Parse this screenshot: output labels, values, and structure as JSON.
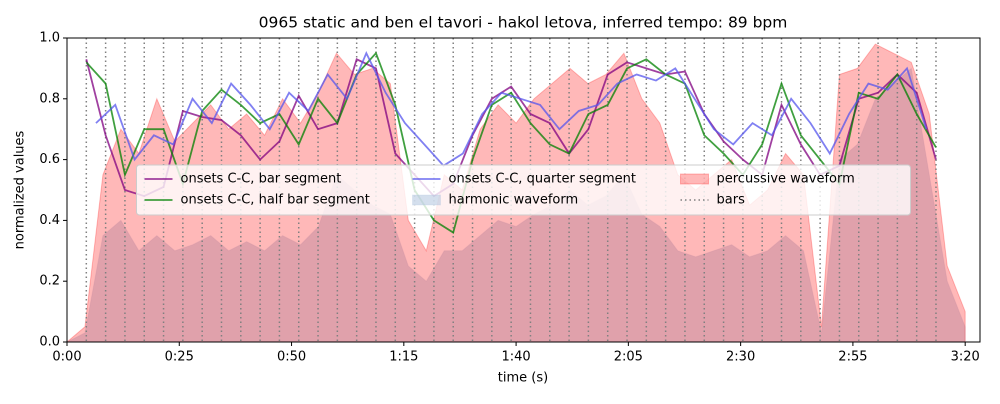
{
  "chart_data": {
    "type": "line",
    "title": "0965 static and ben el tavori - hakol letova, inferred tempo: 89 bpm",
    "x_label": "time (s)",
    "y_label": "normalized values",
    "xlim": [
      0,
      203.3
    ],
    "ylim": [
      0,
      1
    ],
    "xticks": [
      {
        "value": 0,
        "label": "0:00"
      },
      {
        "value": 25,
        "label": "0:25"
      },
      {
        "value": 50,
        "label": "0:50"
      },
      {
        "value": 75,
        "label": "1:15"
      },
      {
        "value": 100,
        "label": "1:40"
      },
      {
        "value": 125,
        "label": "2:05"
      },
      {
        "value": 150,
        "label": "2:30"
      },
      {
        "value": 175,
        "label": "2:55"
      },
      {
        "value": 200,
        "label": "3:20"
      }
    ],
    "yticks": [
      {
        "value": 0,
        "label": "0.0"
      },
      {
        "value": 0.2,
        "label": "0.2"
      },
      {
        "value": 0.4,
        "label": "0.4"
      },
      {
        "value": 0.6,
        "label": "0.6"
      },
      {
        "value": 0.8,
        "label": "0.8"
      },
      {
        "value": 1,
        "label": "1.0"
      }
    ],
    "legend": "center",
    "series": [
      {
        "name": "onsets C-C, bar segment",
        "kind": "line",
        "color": "#800080",
        "x": [
          4.3,
          8.6,
          12.9,
          17.2,
          21.5,
          25.8,
          30.1,
          34.4,
          38.7,
          43,
          47.3,
          51.6,
          55.9,
          60.2,
          64.5,
          68.8,
          73.1,
          77.4,
          81.7,
          86,
          90.3,
          94.6,
          98.9,
          103.2,
          107.5,
          111.8,
          116.1,
          120.4,
          124.7,
          129,
          133.3,
          137.6,
          141.9,
          146.2,
          150.5,
          154.8,
          159.1,
          163.4,
          167.7,
          172,
          176.3,
          180.6,
          184.9,
          189.2,
          193.5
        ],
        "values": [
          0.93,
          0.68,
          0.5,
          0.48,
          0.51,
          0.76,
          0.74,
          0.73,
          0.68,
          0.6,
          0.66,
          0.81,
          0.7,
          0.72,
          0.93,
          0.9,
          0.62,
          0.55,
          0.48,
          0.52,
          0.68,
          0.8,
          0.84,
          0.75,
          0.72,
          0.62,
          0.7,
          0.88,
          0.92,
          0.9,
          0.88,
          0.89,
          0.75,
          0.66,
          0.6,
          0.55,
          0.78,
          0.65,
          0.55,
          0.58,
          0.8,
          0.82,
          0.88,
          0.82,
          0.6
        ]
      },
      {
        "name": "onsets C-C, half bar segment",
        "kind": "line",
        "color": "#008000",
        "x": [
          4.3,
          8.6,
          12.9,
          17.2,
          21.5,
          25.8,
          30.1,
          34.4,
          38.7,
          43,
          47.3,
          51.6,
          55.9,
          60.2,
          64.5,
          68.8,
          73.1,
          77.4,
          81.7,
          86,
          90.3,
          94.6,
          98.9,
          103.2,
          107.5,
          111.8,
          116.1,
          120.4,
          124.7,
          129,
          133.3,
          137.6,
          141.9,
          146.2,
          150.5,
          154.8,
          159.1,
          163.4,
          167.7,
          172,
          176.3,
          180.6,
          184.9,
          189.2,
          193.5
        ],
        "values": [
          0.92,
          0.85,
          0.55,
          0.7,
          0.7,
          0.52,
          0.76,
          0.83,
          0.78,
          0.72,
          0.75,
          0.65,
          0.8,
          0.72,
          0.88,
          0.95,
          0.78,
          0.5,
          0.4,
          0.36,
          0.6,
          0.78,
          0.82,
          0.72,
          0.65,
          0.62,
          0.75,
          0.78,
          0.9,
          0.93,
          0.88,
          0.85,
          0.68,
          0.62,
          0.55,
          0.65,
          0.85,
          0.68,
          0.6,
          0.52,
          0.82,
          0.8,
          0.88,
          0.75,
          0.64
        ]
      },
      {
        "name": "onsets C-C, quarter segment",
        "kind": "line",
        "color": "#5555ee",
        "x": [
          6.45,
          10.75,
          15.05,
          19.35,
          23.65,
          27.95,
          32.25,
          36.55,
          40.85,
          45.15,
          49.45,
          53.75,
          58.05,
          62.35,
          66.65,
          70.95,
          75.25,
          79.55,
          83.85,
          88.15,
          92.45,
          96.75,
          101.05,
          105.35,
          109.65,
          113.95,
          118.25,
          122.55,
          126.85,
          131.15,
          135.45,
          139.75,
          144.05,
          148.35,
          152.65,
          156.95,
          161.25,
          165.55,
          169.85,
          174.15,
          178.45,
          182.75,
          187.05,
          191.35
        ],
        "values": [
          0.72,
          0.78,
          0.6,
          0.68,
          0.65,
          0.8,
          0.72,
          0.85,
          0.78,
          0.7,
          0.82,
          0.76,
          0.88,
          0.8,
          0.95,
          0.82,
          0.72,
          0.65,
          0.58,
          0.62,
          0.75,
          0.82,
          0.8,
          0.78,
          0.7,
          0.76,
          0.78,
          0.85,
          0.88,
          0.86,
          0.9,
          0.8,
          0.7,
          0.65,
          0.72,
          0.68,
          0.8,
          0.72,
          0.62,
          0.75,
          0.85,
          0.83,
          0.9,
          0.7
        ]
      },
      {
        "name": "harmonic waveform",
        "kind": "area",
        "color": "#b0c4de",
        "x": [
          0,
          4,
          8,
          12,
          16,
          20,
          24,
          28,
          32,
          36,
          40,
          44,
          48,
          52,
          56,
          60,
          64,
          68,
          72,
          76,
          80,
          84,
          88,
          92,
          96,
          100,
          104,
          108,
          112,
          116,
          120,
          124,
          128,
          132,
          136,
          140,
          144,
          148,
          152,
          156,
          160,
          164,
          168,
          172,
          176,
          180,
          184,
          188,
          192,
          196,
          200
        ],
        "values": [
          0,
          0.03,
          0.35,
          0.4,
          0.3,
          0.35,
          0.3,
          0.32,
          0.35,
          0.3,
          0.33,
          0.3,
          0.35,
          0.32,
          0.38,
          0.55,
          0.5,
          0.45,
          0.42,
          0.25,
          0.2,
          0.3,
          0.3,
          0.35,
          0.4,
          0.38,
          0.42,
          0.45,
          0.5,
          0.45,
          0.48,
          0.55,
          0.42,
          0.38,
          0.3,
          0.28,
          0.3,
          0.32,
          0.28,
          0.3,
          0.35,
          0.3,
          0.03,
          0.6,
          0.65,
          0.8,
          0.85,
          0.9,
          0.55,
          0.2,
          0.05
        ]
      },
      {
        "name": "percussive waveform",
        "kind": "area",
        "color": "#ff0000",
        "x": [
          0,
          4,
          8,
          12,
          16,
          20,
          24,
          28,
          32,
          36,
          40,
          44,
          48,
          52,
          56,
          60,
          64,
          68,
          72,
          76,
          80,
          84,
          88,
          92,
          96,
          100,
          104,
          108,
          112,
          116,
          120,
          124,
          128,
          132,
          136,
          140,
          144,
          148,
          152,
          156,
          160,
          164,
          168,
          172,
          176,
          180,
          184,
          188,
          192,
          196,
          200
        ],
        "values": [
          0,
          0.05,
          0.55,
          0.7,
          0.62,
          0.8,
          0.66,
          0.72,
          0.78,
          0.7,
          0.75,
          0.68,
          0.8,
          0.72,
          0.82,
          0.95,
          0.88,
          0.9,
          0.85,
          0.4,
          0.3,
          0.55,
          0.5,
          0.7,
          0.78,
          0.72,
          0.8,
          0.85,
          0.9,
          0.85,
          0.88,
          0.95,
          0.8,
          0.72,
          0.55,
          0.5,
          0.55,
          0.6,
          0.45,
          0.5,
          0.62,
          0.55,
          0.05,
          0.88,
          0.9,
          0.98,
          0.95,
          0.92,
          0.75,
          0.25,
          0.1
        ]
      },
      {
        "name": "bars",
        "kind": "vlines",
        "color": "#808080",
        "x": [
          4.3,
          8.6,
          12.9,
          17.2,
          21.5,
          25.8,
          30.1,
          34.4,
          38.7,
          43,
          47.3,
          51.6,
          55.9,
          60.2,
          64.5,
          68.8,
          73.1,
          77.4,
          81.7,
          86,
          90.3,
          94.6,
          98.9,
          103.2,
          107.5,
          111.8,
          116.1,
          120.4,
          124.7,
          129,
          133.3,
          137.6,
          141.9,
          146.2,
          150.5,
          154.8,
          159.1,
          163.4,
          167.7,
          172,
          176.3,
          180.6,
          184.9,
          189.2,
          193.5
        ]
      }
    ]
  }
}
